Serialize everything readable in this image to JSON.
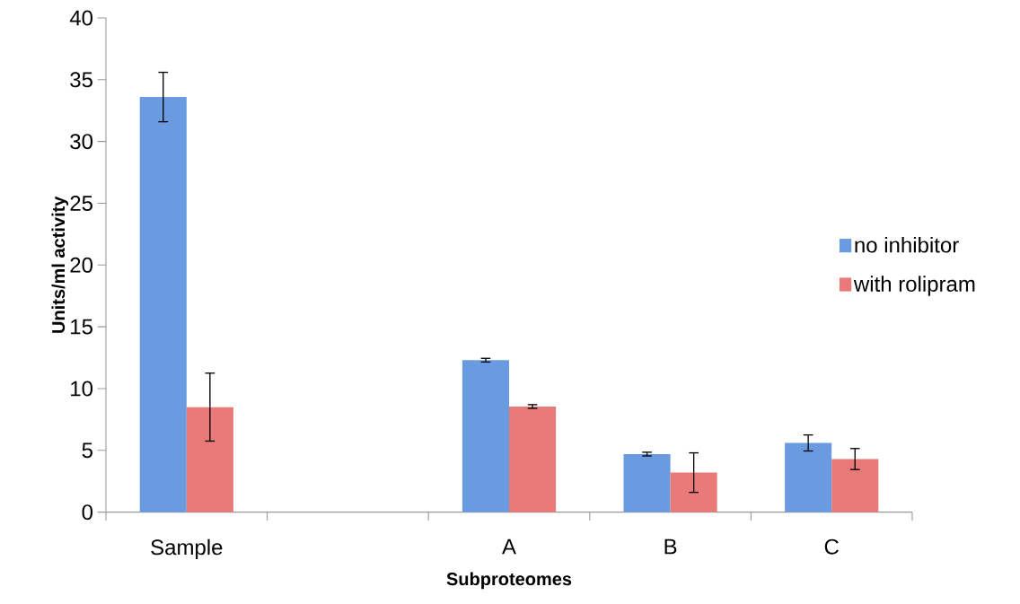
{
  "chart_data": {
    "type": "bar",
    "xlabel": "Subproteomes",
    "ylabel": "Units/ml activity",
    "categories": [
      "Sample",
      null,
      "A",
      "B",
      "C"
    ],
    "series": [
      {
        "name": "no inhibitor",
        "color": "#6a9be0",
        "values": [
          33.6,
          null,
          12.3,
          4.7,
          5.6
        ],
        "errors": [
          2.0,
          null,
          0.15,
          0.15,
          0.65
        ]
      },
      {
        "name": "with rolipram",
        "color": "#e87a7a",
        "values": [
          8.5,
          null,
          8.55,
          3.2,
          4.3
        ],
        "errors": [
          2.75,
          null,
          0.15,
          1.6,
          0.85
        ]
      }
    ],
    "ylim": [
      0,
      40
    ],
    "yticks": [
      0,
      5,
      10,
      15,
      20,
      25,
      30,
      35,
      40
    ],
    "legend": "right",
    "grid": false
  }
}
